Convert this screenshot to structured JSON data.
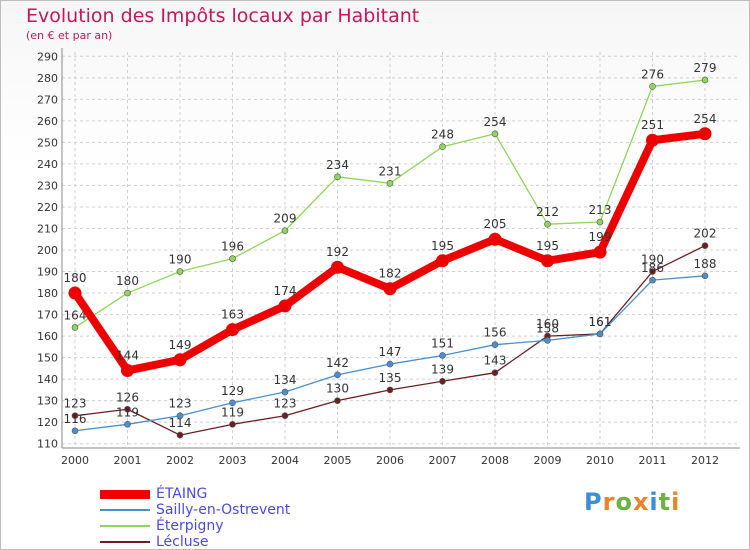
{
  "title": "Evolution des Impôts locaux par Habitant",
  "subtitle": "(en € et par an)",
  "logo": {
    "letters": [
      "P",
      "r",
      "o",
      "x",
      "i",
      "t",
      "i"
    ],
    "colors": [
      "#3a8fd6",
      "#e8842a",
      "#6db33f",
      "#e8842a",
      "#3a8fd6",
      "#6db33f",
      "#e8842a"
    ]
  },
  "chart_data": {
    "type": "line",
    "x": [
      2000,
      2001,
      2002,
      2003,
      2004,
      2005,
      2006,
      2007,
      2008,
      2009,
      2010,
      2011,
      2012
    ],
    "yticks": [
      110,
      120,
      130,
      140,
      150,
      160,
      170,
      180,
      190,
      200,
      210,
      220,
      230,
      240,
      250,
      260,
      270,
      280,
      290
    ],
    "ylim": [
      108,
      292
    ],
    "grid": true,
    "series": [
      {
        "name": "Lécluse",
        "color": "#6b1f24",
        "values": [
          123,
          126,
          114,
          119,
          123,
          130,
          135,
          139,
          143,
          160,
          161,
          190,
          202
        ]
      },
      {
        "name": "Sailly-en-Ostrevent",
        "color": "#4a8fcf",
        "values": [
          116,
          119,
          123,
          129,
          134,
          142,
          147,
          151,
          156,
          158,
          161,
          186,
          188
        ]
      },
      {
        "name": "Éterpigny",
        "color": "#8fd65a",
        "values": [
          164,
          180,
          190,
          196,
          209,
          234,
          231,
          248,
          254,
          212,
          213,
          276,
          279
        ]
      },
      {
        "name": "ÉTAING",
        "color": "#ee0000",
        "values": [
          180,
          144,
          149,
          163,
          174,
          192,
          182,
          195,
          205,
          195,
          199,
          251,
          254
        ]
      }
    ],
    "legend": [
      "ÉTAING",
      "Sailly-en-Ostrevent",
      "Éterpigny",
      "Lécluse"
    ]
  }
}
